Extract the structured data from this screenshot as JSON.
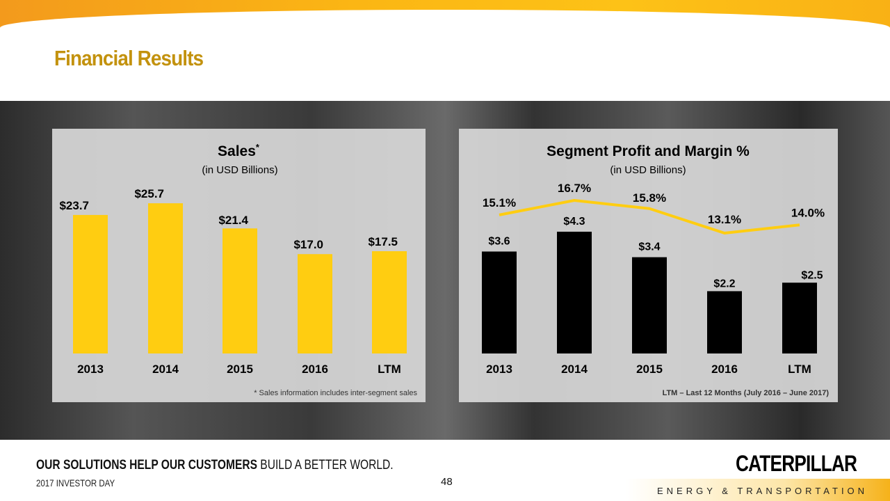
{
  "title": "Financial Results",
  "footer": {
    "tagline_bold": "OUR SOLUTIONS HELP OUR CUSTOMERS",
    "tagline_rest": " BUILD A BETTER WORLD.",
    "event": "2017 INVESTOR DAY",
    "page_number": "48",
    "logo": "CATERPILLAR",
    "division": "ENERGY & TRANSPORTATION"
  },
  "colors": {
    "sales_bar": "#FFCD11",
    "profit_bar": "#000000",
    "margin_line": "#FFCD11",
    "title": "#C3920E"
  },
  "chart_data": [
    {
      "type": "bar",
      "title": "Sales",
      "title_mark": "*",
      "subtitle": "(in USD Billions)",
      "categories": [
        "2013",
        "2014",
        "2015",
        "2016",
        "LTM"
      ],
      "values": [
        23.7,
        25.7,
        21.4,
        17.0,
        17.5
      ],
      "data_labels": [
        "$23.7",
        "$25.7",
        "$21.4",
        "$17.0",
        "$17.5"
      ],
      "footnote": "* Sales information includes inter-segment sales",
      "grid": false
    },
    {
      "type": "bar+line",
      "title": "Segment Profit and Margin %",
      "subtitle": "(in USD Billions)",
      "categories": [
        "2013",
        "2014",
        "2015",
        "2016",
        "LTM"
      ],
      "series": [
        {
          "type": "bar",
          "values": [
            3.6,
            4.3,
            3.4,
            2.2,
            2.5
          ],
          "data_labels": [
            "$3.6",
            "$4.3",
            "$3.4",
            "$2.2",
            "$2.5"
          ]
        },
        {
          "type": "line",
          "values": [
            15.1,
            16.7,
            15.8,
            13.1,
            14.0
          ],
          "data_labels": [
            "15.1%",
            "16.7%",
            "15.8%",
            "13.1%",
            "14.0%"
          ]
        }
      ],
      "footnote": "LTM – Last 12 Months (July 2016 – June 2017)",
      "grid": false
    }
  ]
}
